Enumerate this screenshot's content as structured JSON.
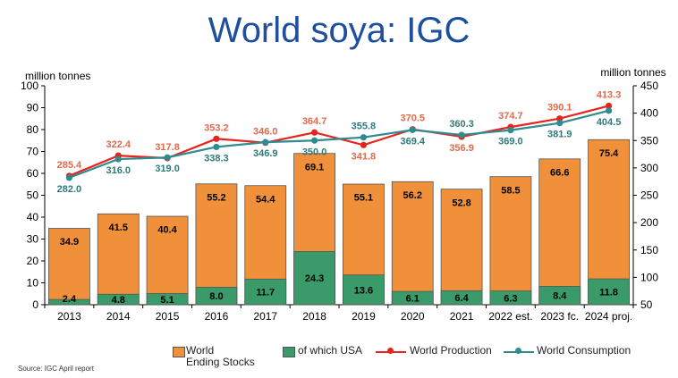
{
  "title": "World soya: IGC",
  "source": "Source: IGC April report",
  "colors": {
    "title": "#1f4e9c",
    "stocks": "#f0903a",
    "usa": "#3a9a6a",
    "production": "#e8231e",
    "consumption": "#2e8b8f",
    "production_label": "#e06a4a",
    "consumption_label": "#2e7a7a"
  },
  "chart_data": {
    "type": "bar",
    "categories": [
      "2013",
      "2014",
      "2015",
      "2016",
      "2017",
      "2018",
      "2019",
      "2020",
      "2021",
      "2022 est.",
      "2023 fc.",
      "2024 proj."
    ],
    "left_axis": {
      "label": "million tonnes",
      "ylim": [
        0,
        100
      ],
      "ticks": [
        0,
        10,
        20,
        30,
        40,
        50,
        60,
        70,
        80,
        90,
        100
      ]
    },
    "right_axis": {
      "label": "million tonnes",
      "ylim": [
        50,
        450
      ],
      "ticks": [
        50,
        100,
        150,
        200,
        250,
        300,
        350,
        400,
        450
      ]
    },
    "series": [
      {
        "name": "World Ending Stocks",
        "type": "bar",
        "axis": "left",
        "values": [
          34.9,
          41.5,
          40.4,
          55.2,
          54.4,
          69.1,
          55.1,
          56.2,
          52.8,
          58.5,
          66.6,
          75.4
        ]
      },
      {
        "name": "of which USA",
        "type": "bar",
        "axis": "left",
        "values": [
          2.4,
          4.8,
          5.1,
          8.0,
          11.7,
          24.3,
          13.6,
          6.1,
          6.4,
          6.3,
          8.4,
          11.8
        ]
      },
      {
        "name": "World Production",
        "type": "line",
        "axis": "right",
        "values": [
          285.4,
          322.4,
          317.8,
          353.2,
          346.0,
          364.7,
          341.8,
          370.5,
          356.9,
          374.7,
          390.1,
          413.3
        ]
      },
      {
        "name": "World Consumption",
        "type": "line",
        "axis": "right",
        "values": [
          282.0,
          316.0,
          319.0,
          338.3,
          346.9,
          350.0,
          355.8,
          369.4,
          360.3,
          369.0,
          381.9,
          404.5
        ]
      }
    ],
    "legend": [
      {
        "line1": "World",
        "line2": "Ending Stocks"
      },
      {
        "line1": "of which USA"
      },
      {
        "line1": "World Production"
      },
      {
        "line1": "World Consumption"
      }
    ],
    "grid": false,
    "legend_position": "bottom"
  }
}
